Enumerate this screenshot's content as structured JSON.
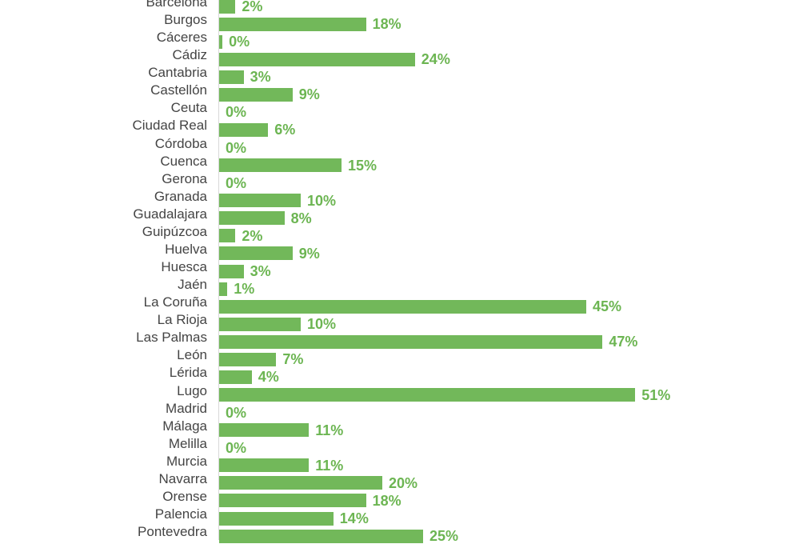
{
  "chart_data": {
    "type": "bar",
    "orientation": "horizontal",
    "categories": [
      "Barcelona",
      "Burgos",
      "Cáceres",
      "Cádiz",
      "Cantabria",
      "Castellón",
      "Ceuta",
      "Ciudad Real",
      "Córdoba",
      "Cuenca",
      "Gerona",
      "Granada",
      "Guadalajara",
      "Guipúzcoa",
      "Huelva",
      "Huesca",
      "Jaén",
      "La Coruña",
      "La Rioja",
      "Las Palmas",
      "León",
      "Lérida",
      "Lugo",
      "Madrid",
      "Málaga",
      "Melilla",
      "Murcia",
      "Navarra",
      "Orense",
      "Palencia",
      "Pontevedra"
    ],
    "values": [
      2,
      18,
      0.4,
      24,
      3,
      9,
      0,
      6,
      0,
      15,
      0,
      10,
      8,
      2,
      9,
      3,
      1,
      45,
      10,
      47,
      7,
      4,
      51,
      0,
      11,
      0,
      11,
      20,
      18,
      14,
      25
    ],
    "labels": [
      "2%",
      "18%",
      "0%",
      "24%",
      "3%",
      "9%",
      "0%",
      "6%",
      "0%",
      "15%",
      "0%",
      "10%",
      "8%",
      "2%",
      "9%",
      "3%",
      "1%",
      "45%",
      "10%",
      "47%",
      "7%",
      "4%",
      "51%",
      "0%",
      "11%",
      "0%",
      "11%",
      "20%",
      "18%",
      "14%",
      "25%"
    ],
    "unit": "%",
    "xlim": [
      0,
      100
    ],
    "grid": false,
    "bar_color": "#72b85a",
    "label_color": "#6cb552"
  }
}
